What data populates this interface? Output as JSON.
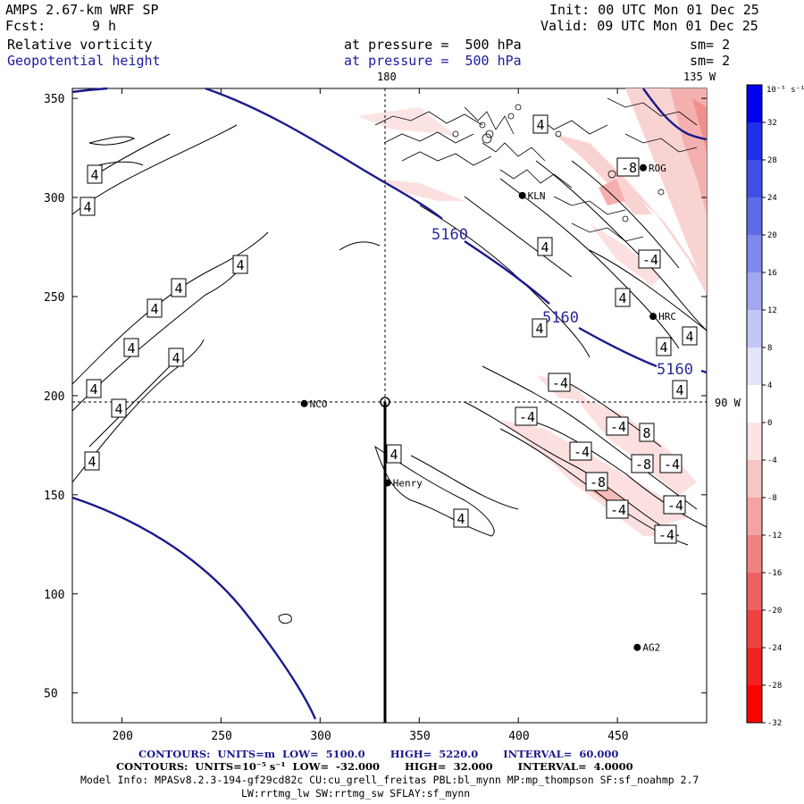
{
  "header": {
    "model": "AMPS 2.67-km WRF SP",
    "init": "Init: 00 UTC Mon 01 Dec 25",
    "fcst_label": "Fcst:",
    "fcst_value": "9 h",
    "valid": "Valid: 09 UTC Mon 01 Dec 25",
    "field1_name": "Relative vorticity",
    "field1_level": "at pressure =  500 hPa",
    "field1_sm": "sm= 2",
    "field2_name": "Geopotential height",
    "field2_level": "at pressure =  500 hPa",
    "field2_sm": "sm= 2"
  },
  "map": {
    "top_lon_label": "180",
    "top_right_lon_label": "135 W",
    "right_lon_label": "90 W",
    "x_ticks": [
      "200",
      "250",
      "300",
      "350",
      "400",
      "450"
    ],
    "y_ticks": [
      "350",
      "300",
      "250",
      "200",
      "150",
      "100",
      "50"
    ],
    "x_range": [
      175,
      495
    ],
    "y_range": [
      35,
      355
    ],
    "stations": [
      {
        "name": "NCO",
        "x": 292,
        "y": 196
      },
      {
        "name": "Henry",
        "x": 334,
        "y": 156
      },
      {
        "name": "AG2",
        "x": 460,
        "y": 73
      },
      {
        "name": "HRC",
        "x": 468,
        "y": 240
      },
      {
        "name": "ROG",
        "x": 463,
        "y": 315
      },
      {
        "name": "KLN",
        "x": 402,
        "y": 301
      }
    ],
    "height_labels": [
      "5160",
      "5160",
      "5160"
    ],
    "vort_labels_pos": [
      "4",
      "4",
      "4",
      "4",
      "4",
      "4",
      "4",
      "4",
      "4",
      "4",
      "4",
      "4",
      "4",
      "4",
      "4",
      "4",
      "4",
      "4",
      "4",
      "8"
    ],
    "vort_labels_neg": [
      "-8",
      "-4",
      "-4",
      "-4",
      "-4",
      "-4",
      "-8",
      "-8",
      "-4",
      "-4",
      "-4",
      "-4"
    ]
  },
  "colorbar": {
    "unit": "10⁻⁵ s⁻¹",
    "labels": [
      "32",
      "28",
      "24",
      "20",
      "16",
      "12",
      "8",
      "4",
      "0",
      "-4",
      "-8",
      "-12",
      "-16",
      "-20",
      "-24",
      "-28",
      "-32"
    ],
    "colors": [
      "#0000ee",
      "#1f30ea",
      "#3f4fe6",
      "#5f6ce8",
      "#8088ec",
      "#a2a8f0",
      "#c3c7f5",
      "#e3e5fa",
      "#ffffff",
      "#fbe4e3",
      "#f7c5c3",
      "#f3a4a2",
      "#f08381",
      "#ed6260",
      "#ee4240",
      "#f22422",
      "#ff0000"
    ]
  },
  "footer": {
    "contours1": "CONTOURS:  UNITS=m  LOW=  5100.0       HIGH=  5220.0       INTERVAL=  60.000",
    "contours2": "CONTOURS:  UNITS=10⁻⁵ s⁻¹  LOW=  -32.000       HIGH=  32.000       INTERVAL=  4.0000",
    "model_info": "Model Info: MPASv8.2.3-194-gf29cd82c CU:cu_grell_freitas PBL:bl_mynn MP:mp_thompson SF:sf_noahmp 2.7",
    "model_info2": "LW:rrtmg_lw SW:rrtmg_sw SFLAY:sf_mynn"
  }
}
